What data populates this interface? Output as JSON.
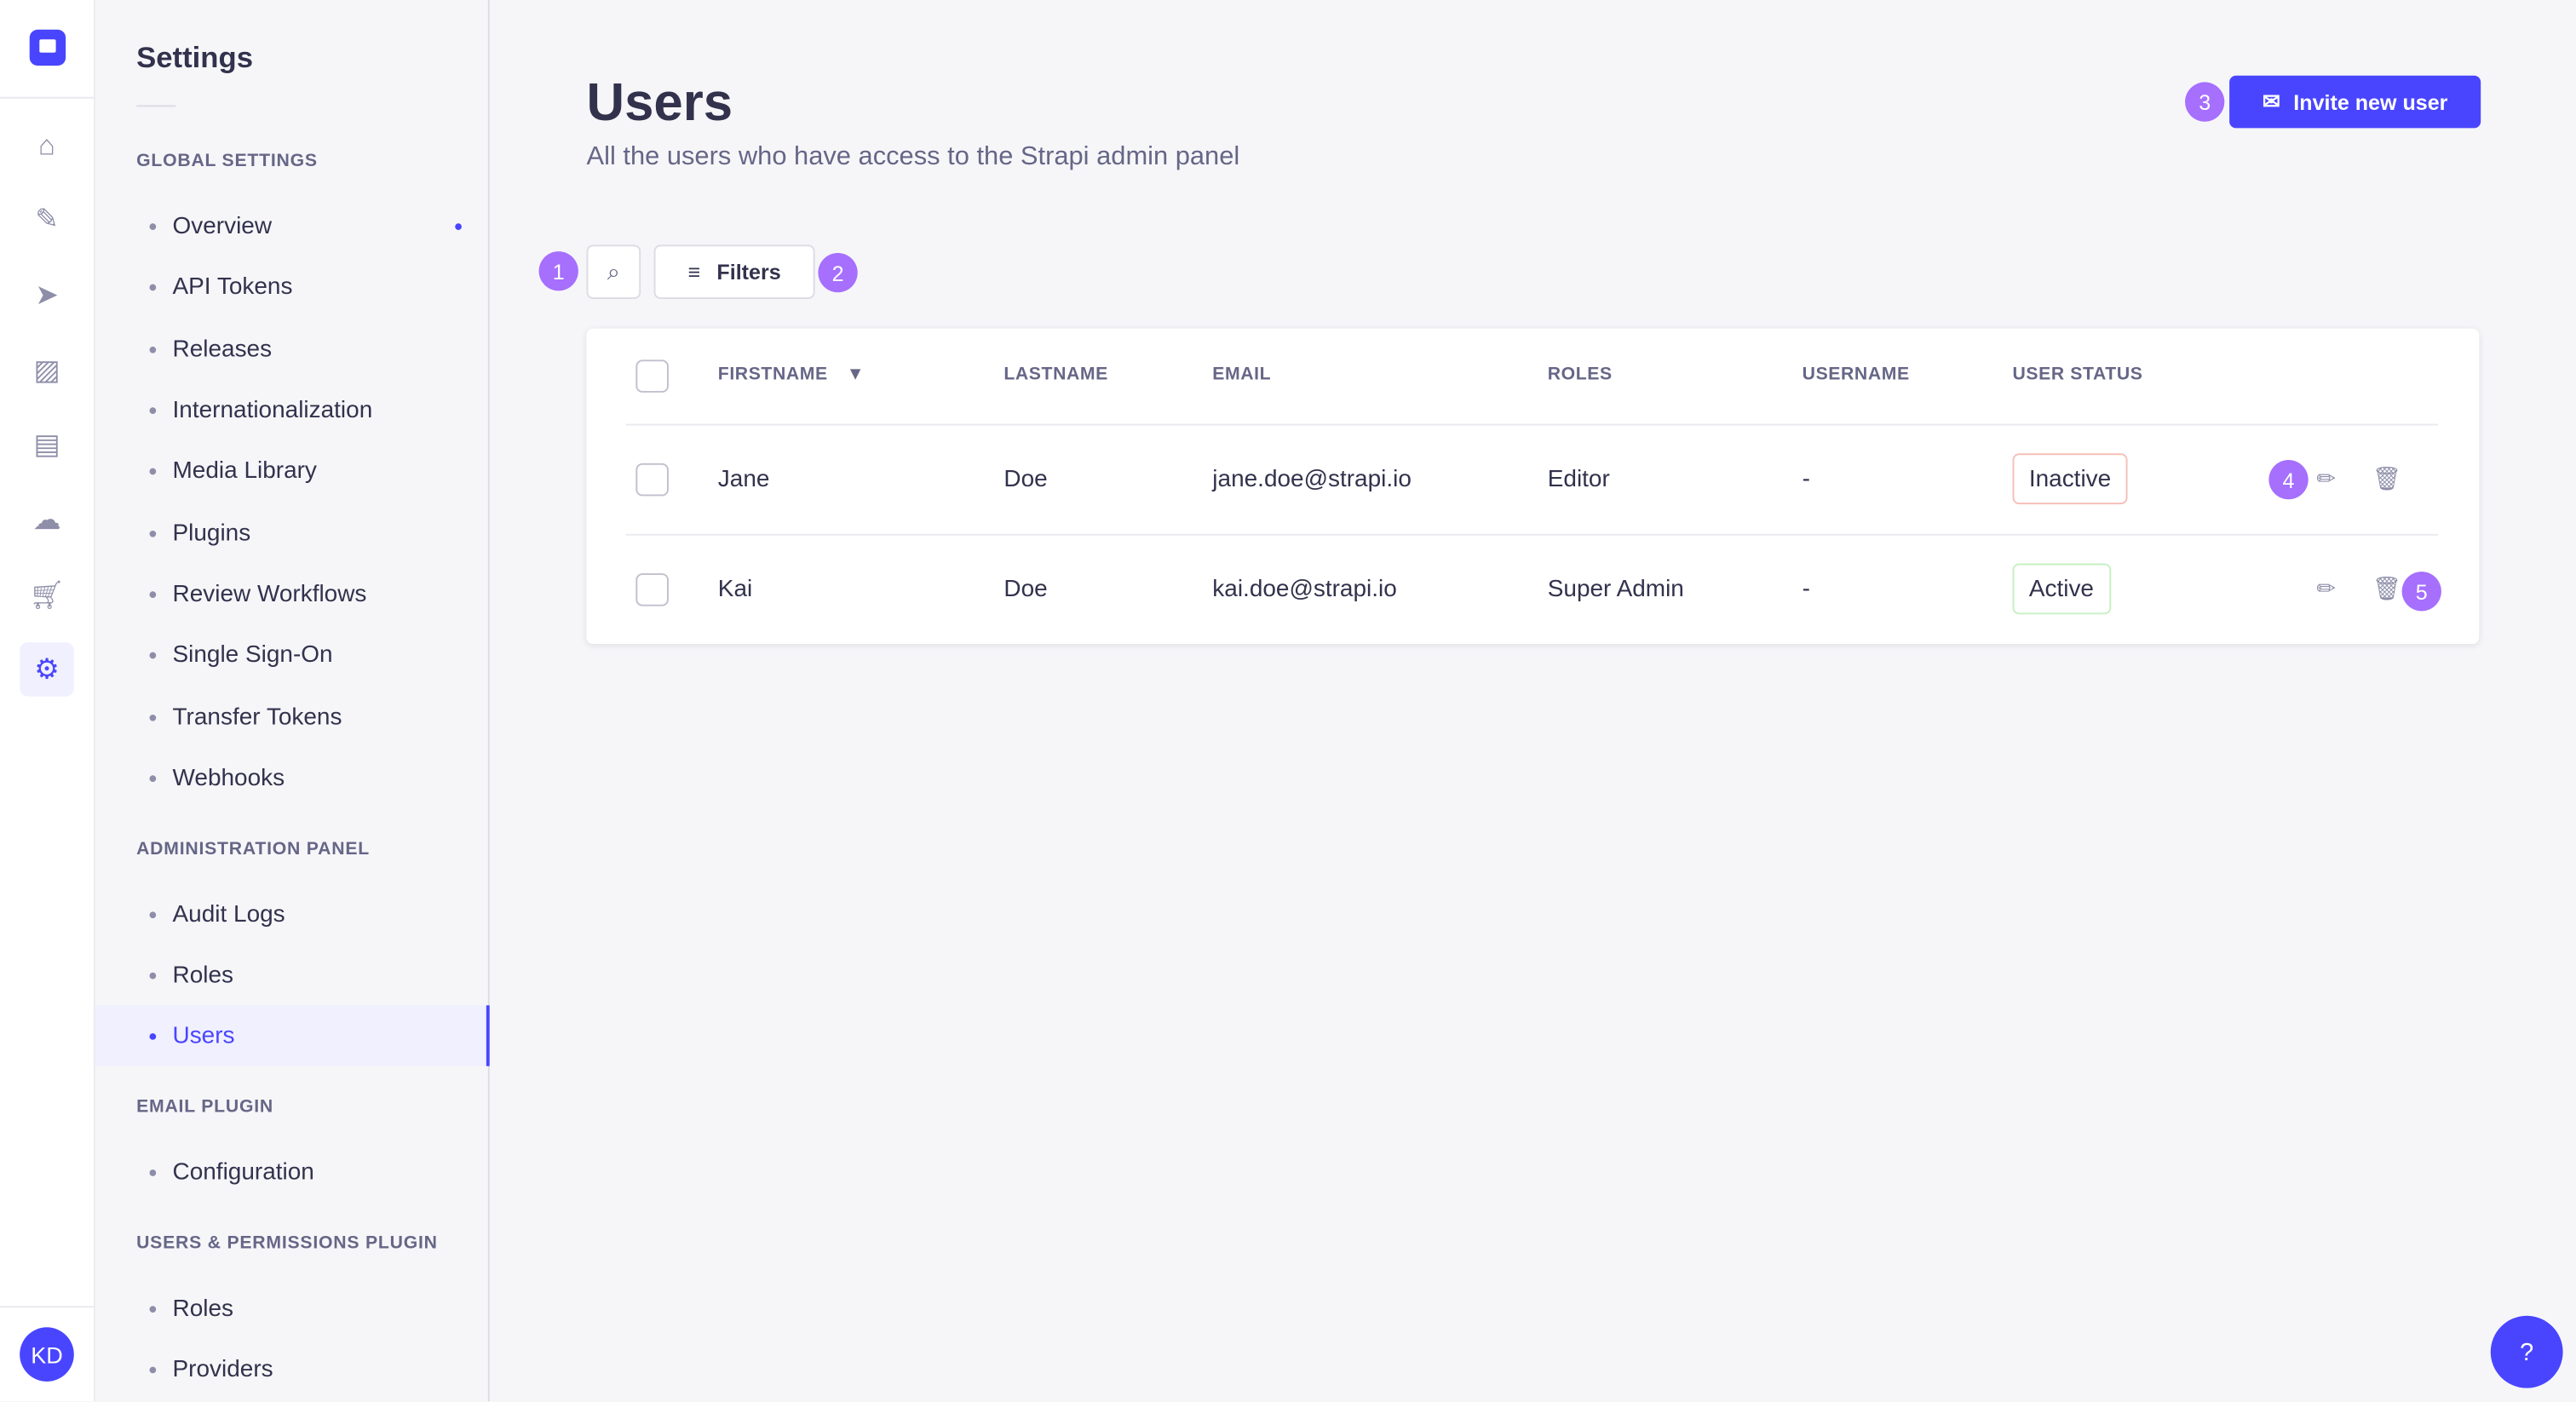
{
  "rail": {
    "items": [
      "home-icon",
      "content-manager-icon",
      "releases-icon",
      "media-icon",
      "content-type-builder-icon",
      "cloud-icon",
      "marketplace-icon",
      "settings-icon"
    ],
    "avatar": "KD",
    "brand_color": "#4945ff"
  },
  "subnav": {
    "title": "Settings",
    "sections": [
      {
        "label": "GLOBAL SETTINGS",
        "items": [
          "Overview",
          "API Tokens",
          "Releases",
          "Internationalization",
          "Media Library",
          "Plugins",
          "Review Workflows",
          "Single Sign-On",
          "Transfer Tokens",
          "Webhooks"
        ]
      },
      {
        "label": "ADMINISTRATION PANEL",
        "items": [
          "Audit Logs",
          "Roles",
          "Users"
        ]
      },
      {
        "label": "EMAIL PLUGIN",
        "items": [
          "Configuration"
        ]
      },
      {
        "label": "USERS & PERMISSIONS PLUGIN",
        "items": [
          "Roles",
          "Providers"
        ]
      }
    ],
    "active": "Users"
  },
  "header": {
    "title": "Users",
    "subtitle": "All the users who have access to the Strapi admin panel",
    "invite_label": "Invite new user"
  },
  "toolbar": {
    "filters_label": "Filters"
  },
  "badges": [
    "1",
    "2",
    "3",
    "4",
    "5"
  ],
  "table": {
    "columns": [
      "FIRSTNAME",
      "LASTNAME",
      "EMAIL",
      "ROLES",
      "USERNAME",
      "USER STATUS"
    ],
    "rows": [
      {
        "firstname": "Jane",
        "lastname": "Doe",
        "email": "jane.doe@strapi.io",
        "roles": "Editor",
        "username": "-",
        "status": "Inactive"
      },
      {
        "firstname": "Kai",
        "lastname": "Doe",
        "email": "kai.doe@strapi.io",
        "roles": "Super Admin",
        "username": "-",
        "status": "Active"
      }
    ]
  },
  "badge_color": "#a66ffe"
}
